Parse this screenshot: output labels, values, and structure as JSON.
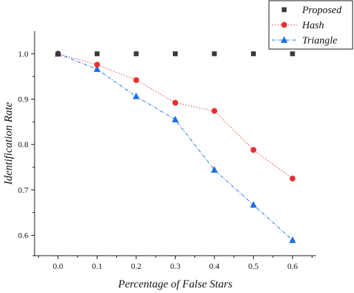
{
  "chart_data": {
    "type": "line",
    "title": "",
    "xlabel": "Percentage of False Stars",
    "ylabel": "Identification Rate",
    "x": [
      0.0,
      0.1,
      0.2,
      0.3,
      0.4,
      0.5,
      0.6
    ],
    "x_tick_labels": [
      "0.0",
      "0.1",
      "0.2",
      "0.3",
      "0.4",
      "0.5",
      "0.6"
    ],
    "y_tick_labels": [
      "0.6",
      "0.7",
      "0.8",
      "0.9",
      "1.0"
    ],
    "y_ticks": [
      0.6,
      0.7,
      0.8,
      0.9,
      1.0
    ],
    "xlim": [
      -0.06,
      0.66
    ],
    "ylim": [
      0.555,
      1.05
    ],
    "grid": false,
    "legend_position": "top-right",
    "series": [
      {
        "name": "Proposed",
        "values": [
          1.0,
          1.0,
          1.0,
          1.0,
          1.0,
          1.0,
          1.0
        ],
        "color": "#3a3a3a",
        "marker": "square",
        "line": "none"
      },
      {
        "name": "Hash",
        "values": [
          1.0,
          0.976,
          0.942,
          0.892,
          0.874,
          0.788,
          0.725
        ],
        "color": "#e83030",
        "marker": "circle",
        "line": "dotted"
      },
      {
        "name": "Triangle",
        "values": [
          1.0,
          0.966,
          0.906,
          0.855,
          0.744,
          0.667,
          0.589
        ],
        "color": "#1f6fe0",
        "marker": "triangle",
        "line": "dashdot"
      }
    ]
  }
}
